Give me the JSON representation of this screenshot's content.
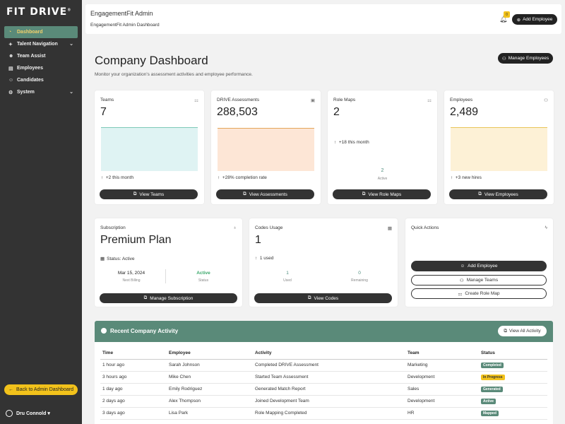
{
  "sidebar": {
    "logo": "FIT DRIVE",
    "logo_mark": "®",
    "items": [
      {
        "label": "Dashboard",
        "icon": "gauge-icon",
        "active": true
      },
      {
        "label": "Talent Navigation",
        "icon": "compass-icon",
        "expandable": true
      },
      {
        "label": "Team Assist",
        "icon": "users-icon"
      },
      {
        "label": "Employees",
        "icon": "id-card-icon"
      },
      {
        "label": "Candidates",
        "icon": "user-plus-icon"
      },
      {
        "label": "System",
        "icon": "gear-icon",
        "expandable": true
      }
    ],
    "back_label": "Back to Admin Dashboard",
    "user_name": "Dru Connold"
  },
  "header": {
    "title": "EngagementFit Admin",
    "breadcrumb": "EngagementFit Admin Dashboard",
    "notification_count": "0",
    "add_employee_label": "Add Employee"
  },
  "page": {
    "title": "Company Dashboard",
    "subtitle": "Monitor your organization's assessment activities and employee performance.",
    "manage_employees_label": "Manage Employees"
  },
  "stats": [
    {
      "label": "Teams",
      "value": "7",
      "change": "+2 this month",
      "button": "View Teams",
      "fill": "#dff3f3",
      "line": "#7ec9b8"
    },
    {
      "label": "DRIVE Assessments",
      "value": "288,503",
      "change": "+28% completion rate",
      "button": "View Assessments",
      "fill": "#fde6d6",
      "line": "#e3a55b"
    },
    {
      "label": "Role Maps",
      "value": "2",
      "change": "+18 this month",
      "button": "View Role Maps",
      "mini_value": "2",
      "mini_label": "Active"
    },
    {
      "label": "Employees",
      "value": "2,489",
      "change": "+3 new hires",
      "button": "View Employees",
      "fill": "#fdf1d6",
      "line": "#e8c55a"
    }
  ],
  "subscription": {
    "label": "Subscription",
    "plan": "Premium Plan",
    "status": "Status: Active",
    "billing_value": "Mar 15, 2024",
    "billing_label": "Next Billing",
    "status_value": "Active",
    "status_label": "Status",
    "button": "Manage Subscription"
  },
  "codes": {
    "label": "Codes Usage",
    "value": "1",
    "used_text": "1 used",
    "used_value": "1",
    "used_label": "Used",
    "remaining_value": "0",
    "remaining_label": "Remaining",
    "button": "View Codes"
  },
  "quick_actions": {
    "label": "Quick Actions",
    "buttons": [
      "Add Employee",
      "Manage Teams",
      "Create Role Map"
    ]
  },
  "activity": {
    "title": "Recent Company Activity",
    "view_all": "View All Activity",
    "columns": [
      "Time",
      "Employee",
      "Activity",
      "Team",
      "Status"
    ],
    "rows": [
      {
        "time": "1 hour ago",
        "employee": "Sarah Johnson",
        "activity": "Completed DRIVE Assessment",
        "team": "Marketing",
        "status": "Completed",
        "color": "#5a8a79",
        "text": "#ffffff"
      },
      {
        "time": "3 hours ago",
        "employee": "Mike Chen",
        "activity": "Started Team Assessment",
        "team": "Development",
        "status": "In Progress",
        "color": "#f2c21b",
        "text": "#333333"
      },
      {
        "time": "1 day ago",
        "employee": "Emily Rodriguez",
        "activity": "Generated Match Report",
        "team": "Sales",
        "status": "Generated",
        "color": "#5a8a79",
        "text": "#ffffff"
      },
      {
        "time": "2 days ago",
        "employee": "Alex Thompson",
        "activity": "Joined Development Team",
        "team": "Development",
        "status": "Active",
        "color": "#5a8a79",
        "text": "#ffffff"
      },
      {
        "time": "3 days ago",
        "employee": "Lisa Park",
        "activity": "Role Mapping Completed",
        "team": "HR",
        "status": "Mapped",
        "color": "#5a8a79",
        "text": "#ffffff"
      }
    ]
  }
}
